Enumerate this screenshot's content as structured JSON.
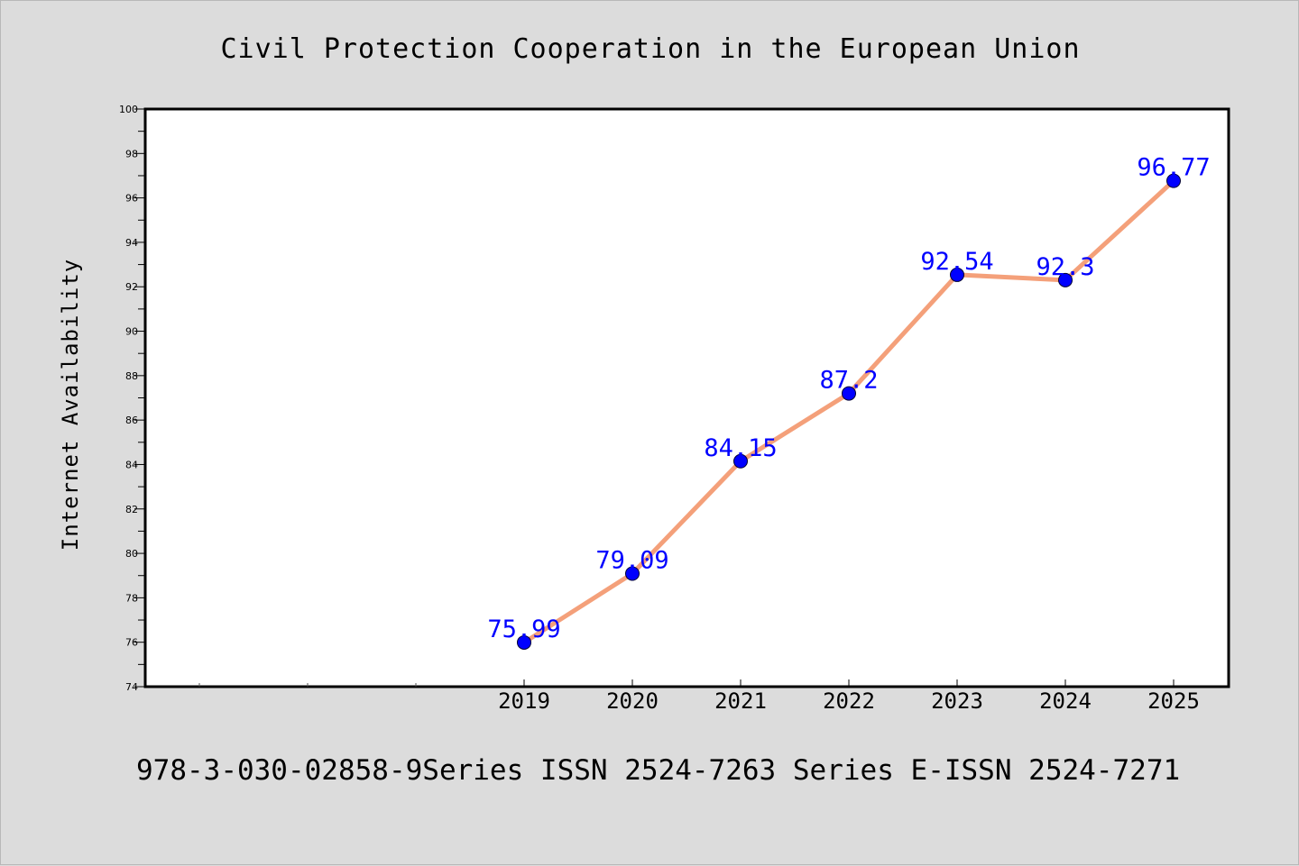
{
  "chart_data": {
    "type": "line",
    "title": "Civil Protection Cooperation in the European Union",
    "xlabel": "",
    "ylabel": "Internet Availability",
    "categories": [
      "2019",
      "2020",
      "2021",
      "2022",
      "2023",
      "2024",
      "2025"
    ],
    "values": [
      75.99,
      79.09,
      84.15,
      87.2,
      92.54,
      92.3,
      96.77
    ],
    "data_labels": [
      "75.99",
      "79.09",
      "84.15",
      "87.2",
      "92.54",
      "92.3",
      "96.77"
    ],
    "ylim": [
      74,
      100
    ],
    "yticks": [
      "74",
      "76",
      "78",
      "80",
      "82",
      "84",
      "86",
      "88",
      "90",
      "92",
      "94",
      "96",
      "98",
      "100"
    ],
    "grid": false,
    "line_color": "#f4a07a",
    "marker_color": "#0000ff",
    "label_color": "#0000ff"
  },
  "footer": {
    "text": "978-3-030-02858-9Series ISSN 2524-7263 Series E-ISSN 2524-7271"
  }
}
